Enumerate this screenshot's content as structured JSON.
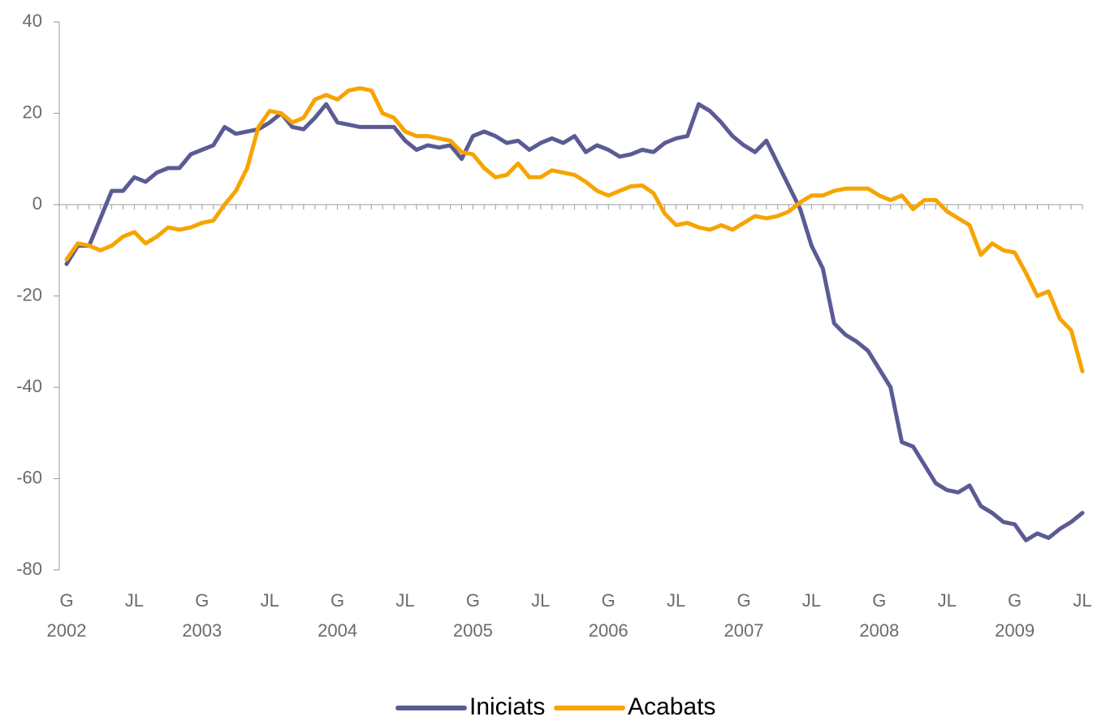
{
  "chart_data": {
    "type": "line",
    "categories": [
      "G",
      null,
      null,
      null,
      null,
      null,
      "JL",
      null,
      null,
      null,
      null,
      null,
      "G",
      null,
      null,
      null,
      null,
      null,
      "JL",
      null,
      null,
      null,
      null,
      null,
      "G",
      null,
      null,
      null,
      null,
      null,
      "JL",
      null,
      null,
      null,
      null,
      null,
      "G",
      null,
      null,
      null,
      null,
      null,
      "JL",
      null,
      null,
      null,
      null,
      null,
      "G",
      null,
      null,
      null,
      null,
      null,
      "JL",
      null,
      null,
      null,
      null,
      null,
      "G",
      null,
      null,
      null,
      null,
      null,
      "JL",
      null,
      null,
      null,
      null,
      null,
      "G",
      null,
      null,
      null,
      null,
      null,
      "JL",
      null,
      null,
      null,
      null,
      null,
      "G",
      null,
      null,
      null,
      null,
      null,
      "JL"
    ],
    "years": [
      "2002",
      "2003",
      "2004",
      "2005",
      "2006",
      "2007",
      "2008",
      "2009"
    ],
    "series": [
      {
        "name": "Iniciats",
        "color": "#5b5b94",
        "values": [
          -13,
          -9,
          -9,
          -3,
          3,
          3,
          6,
          5,
          7,
          8,
          8,
          11,
          12,
          13,
          17,
          15.5,
          16,
          16.5,
          18,
          20,
          17,
          16.5,
          19,
          22,
          18,
          17.5,
          17,
          17,
          17,
          17,
          14,
          12,
          13,
          12.5,
          13,
          10,
          15,
          16,
          15,
          13.5,
          14,
          12,
          13.5,
          14.5,
          13.5,
          15,
          11.5,
          13,
          12,
          10.5,
          11,
          12,
          11.5,
          13.5,
          14.5,
          15,
          22,
          20.5,
          18,
          15,
          13,
          11.5,
          14,
          9,
          4,
          -1,
          -9,
          -14,
          -26,
          -28.5,
          -30,
          -32,
          -36,
          -40,
          -52,
          -53,
          -57,
          -61,
          -62.5,
          -63,
          -61.5,
          -66,
          -67.5,
          -69.5,
          -70,
          -73.5,
          -72,
          -73,
          -71,
          -69.5,
          -67.5
        ]
      },
      {
        "name": "Acabats",
        "color": "#f7a400",
        "values": [
          -12,
          -8.5,
          -9,
          -10,
          -9,
          -7,
          -6,
          -8.5,
          -7,
          -5,
          -5.5,
          -5,
          -4,
          -3.5,
          0,
          3,
          8,
          17,
          20.5,
          20,
          18,
          19,
          23,
          24,
          23,
          25,
          25.5,
          25,
          20,
          19,
          16,
          15,
          15,
          14.5,
          14,
          11.5,
          11,
          8,
          6,
          6.5,
          9,
          6,
          6,
          7.5,
          7,
          6.5,
          5,
          3,
          2,
          3,
          4,
          4.2,
          2.5,
          -2,
          -4.5,
          -4,
          -5,
          -5.5,
          -4.5,
          -5.5,
          -4,
          -2.5,
          -3,
          -2.5,
          -1.5,
          0.5,
          2,
          2,
          3,
          3.5,
          3.5,
          3.5,
          2,
          1,
          2,
          -1,
          1,
          1,
          -1.5,
          -3,
          -4.5,
          -11,
          -8.5,
          -10,
          -10.5,
          -15,
          -20,
          -19,
          -25,
          -27.5,
          -36.5
        ]
      }
    ],
    "ylim": [
      -80,
      40
    ],
    "yticks": [
      40,
      20,
      0,
      -20,
      -40,
      -60,
      -80
    ]
  }
}
